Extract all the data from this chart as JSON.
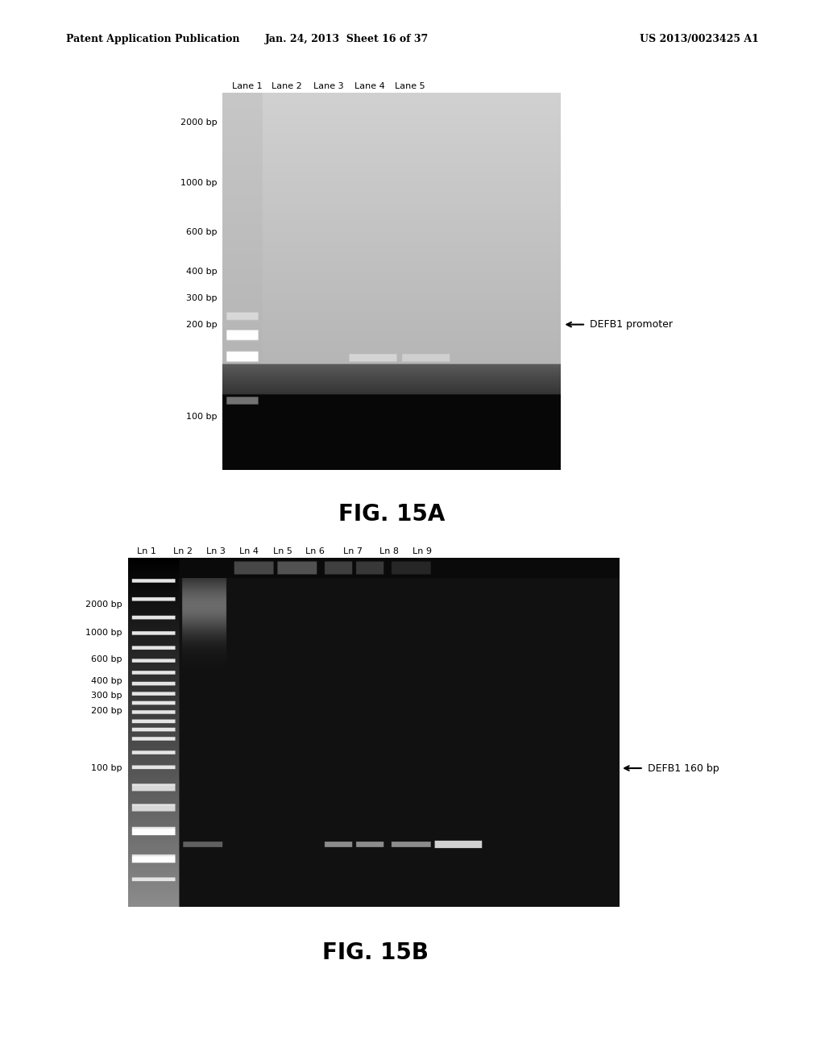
{
  "page_header_left": "Patent Application Publication",
  "page_header_mid": "Jan. 24, 2013  Sheet 16 of 37",
  "page_header_right": "US 2013/0023425 A1",
  "fig_a_title": "FIG. 15A",
  "fig_b_title": "FIG. 15B",
  "fig_a_lane_labels": [
    "Lane 1",
    "Lane 2",
    "Lane 3",
    "Lane 4",
    "Lane 5"
  ],
  "fig_b_lane_labels": [
    "Ln 1",
    "Ln 2",
    "Ln 3",
    "Ln 4",
    "Ln 5",
    "Ln 6",
    "Ln 7",
    "Ln 8",
    "Ln 9"
  ],
  "fig_a_bp_labels": [
    "2000 bp",
    "1000 bp",
    "600 bp",
    "400 bp",
    "300 bp",
    "200 bp",
    "100 bp"
  ],
  "fig_b_bp_labels": [
    "2000 bp",
    "1000 bp",
    "600 bp",
    "400 bp",
    "300 bp",
    "200 bp",
    "100 bp"
  ],
  "fig_a_annotation": "DEFB1 promoter",
  "fig_b_annotation": "DEFB1 160 bp",
  "background_color": "#ffffff"
}
